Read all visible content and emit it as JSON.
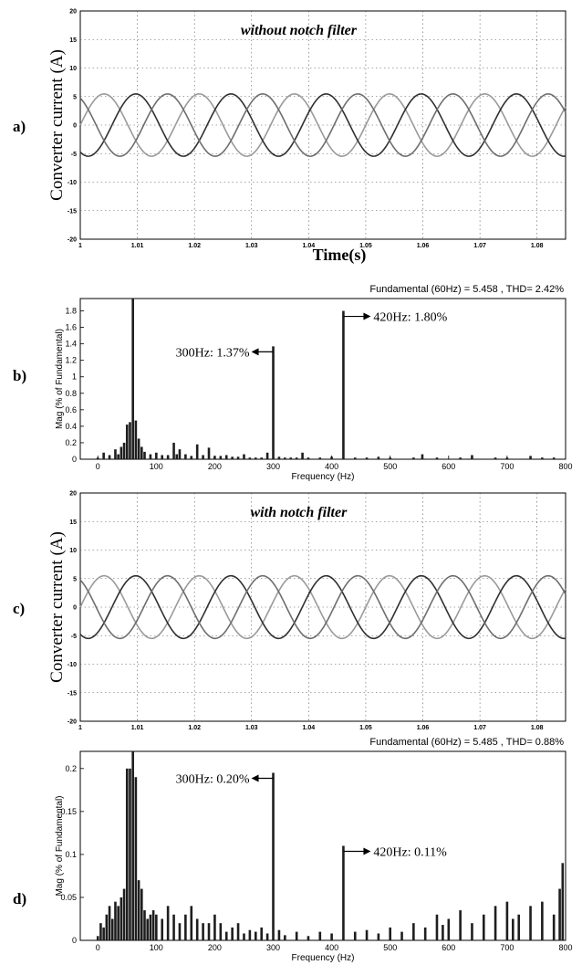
{
  "chart_data": [
    {
      "type": "line",
      "panel_label": "a)",
      "title": "without notch filter",
      "xlabel": "Time(s)",
      "ylabel": "Converter current (A)",
      "xlim": [
        1,
        1.085
      ],
      "ylim": [
        -20,
        20
      ],
      "x_ticks": [
        "1",
        "1.01",
        "1.02",
        "1.03",
        "1.04",
        "1.05",
        "1.06",
        "1.07",
        "1.08"
      ],
      "y_ticks": [
        "20",
        "15",
        "10",
        "5",
        "0",
        "-5",
        "-10",
        "-15",
        "-20"
      ],
      "grid": true,
      "frequency_hz": 60,
      "series": [
        {
          "amplitude": 5.46,
          "phase_deg": 0,
          "color": "#9a9a9a"
        },
        {
          "amplitude": 5.46,
          "phase_deg": -120,
          "color": "#303030"
        },
        {
          "amplitude": 5.46,
          "phase_deg": 120,
          "color": "#6e6e6e"
        }
      ]
    },
    {
      "type": "bar",
      "panel_label": "b)",
      "subtitle": "Fundamental (60Hz) = 5.458 , THD= 2.42%",
      "xlabel": "Frequency (Hz)",
      "ylabel": "Mag (% of Fundamental)",
      "xlim": [
        -30,
        800
      ],
      "ylim": [
        0,
        1.95
      ],
      "x_ticks": [
        "0",
        "100",
        "200",
        "300",
        "400",
        "500",
        "600",
        "700",
        "800"
      ],
      "y_ticks": [
        "0",
        "0.2",
        "0.4",
        "0.6",
        "0.8",
        "1",
        "1.2",
        "1.4",
        "1.6",
        "1.8"
      ],
      "annotations": [
        {
          "text": "300Hz: 1.37%",
          "x": 300,
          "y": 1.37
        },
        {
          "text": "420Hz: 1.80%",
          "x": 420,
          "y": 1.8
        }
      ],
      "x": [
        0,
        10,
        20,
        30,
        35,
        40,
        45,
        50,
        55,
        60,
        65,
        70,
        75,
        80,
        90,
        100,
        110,
        120,
        130,
        135,
        140,
        150,
        160,
        170,
        180,
        190,
        200,
        210,
        220,
        230,
        240,
        250,
        260,
        270,
        280,
        290,
        300,
        310,
        320,
        330,
        340,
        350,
        360,
        380,
        400,
        420,
        440,
        460,
        480,
        500,
        540,
        555,
        580,
        620,
        640,
        680,
        700,
        740,
        760,
        780
      ],
      "values": [
        0.02,
        0.08,
        0.05,
        0.12,
        0.06,
        0.15,
        0.2,
        0.42,
        0.45,
        1.95,
        0.47,
        0.25,
        0.15,
        0.09,
        0.06,
        0.08,
        0.05,
        0.05,
        0.2,
        0.06,
        0.12,
        0.06,
        0.04,
        0.18,
        0.05,
        0.14,
        0.04,
        0.04,
        0.05,
        0.03,
        0.03,
        0.06,
        0.02,
        0.02,
        0.02,
        0.08,
        1.37,
        0.03,
        0.02,
        0.02,
        0.02,
        0.08,
        0.02,
        0.02,
        0.03,
        1.8,
        0.02,
        0.02,
        0.03,
        0.02,
        0.02,
        0.06,
        0.02,
        0.02,
        0.05,
        0.02,
        0.02,
        0.04,
        0.02,
        0.02
      ]
    },
    {
      "type": "line",
      "panel_label": "c)",
      "title": "with notch filter",
      "xlabel": "",
      "ylabel": "Converter current (A)",
      "xlim": [
        1,
        1.085
      ],
      "ylim": [
        -20,
        20
      ],
      "x_ticks": [
        "1",
        "1.01",
        "1.02",
        "1.03",
        "1.04",
        "1.05",
        "1.06",
        "1.07",
        "1.08"
      ],
      "y_ticks": [
        "20",
        "15",
        "10",
        "5",
        "0",
        "-5",
        "-10",
        "-15",
        "-20"
      ],
      "grid": true,
      "frequency_hz": 60,
      "series": [
        {
          "amplitude": 5.49,
          "phase_deg": 0,
          "color": "#9a9a9a"
        },
        {
          "amplitude": 5.49,
          "phase_deg": -120,
          "color": "#303030"
        },
        {
          "amplitude": 5.49,
          "phase_deg": 120,
          "color": "#6e6e6e"
        }
      ]
    },
    {
      "type": "bar",
      "panel_label": "d)",
      "subtitle": "Fundamental (60Hz) = 5.485 , THD= 0.88%",
      "xlabel": "Frequency (Hz)",
      "ylabel": "Mag (% of Fundamental)",
      "xlim": [
        -30,
        800
      ],
      "ylim": [
        0,
        0.22
      ],
      "x_ticks": [
        "0",
        "100",
        "200",
        "300",
        "400",
        "500",
        "600",
        "700",
        "800"
      ],
      "y_ticks": [
        "0",
        "0.05",
        "0.1",
        "0.15",
        "0.2"
      ],
      "annotations": [
        {
          "text": "300Hz: 0.20%",
          "x": 300,
          "y": 0.195
        },
        {
          "text": "420Hz: 0.11%",
          "x": 420,
          "y": 0.11
        }
      ],
      "x": [
        0,
        5,
        10,
        15,
        20,
        25,
        30,
        35,
        40,
        45,
        50,
        55,
        60,
        65,
        70,
        75,
        80,
        85,
        90,
        95,
        100,
        110,
        120,
        130,
        140,
        150,
        160,
        170,
        180,
        190,
        200,
        210,
        220,
        230,
        240,
        250,
        260,
        270,
        280,
        290,
        300,
        310,
        320,
        340,
        360,
        380,
        400,
        420,
        440,
        460,
        480,
        500,
        520,
        540,
        560,
        580,
        590,
        600,
        620,
        640,
        660,
        680,
        700,
        710,
        720,
        740,
        760,
        780,
        790,
        795
      ],
      "values": [
        0.005,
        0.02,
        0.015,
        0.03,
        0.04,
        0.025,
        0.045,
        0.04,
        0.05,
        0.06,
        0.2,
        0.2,
        0.225,
        0.19,
        0.07,
        0.06,
        0.035,
        0.025,
        0.03,
        0.035,
        0.03,
        0.025,
        0.04,
        0.03,
        0.02,
        0.03,
        0.04,
        0.025,
        0.02,
        0.02,
        0.03,
        0.02,
        0.01,
        0.015,
        0.02,
        0.008,
        0.012,
        0.01,
        0.015,
        0.008,
        0.195,
        0.012,
        0.006,
        0.01,
        0.005,
        0.01,
        0.008,
        0.11,
        0.01,
        0.012,
        0.008,
        0.015,
        0.01,
        0.02,
        0.015,
        0.03,
        0.018,
        0.025,
        0.035,
        0.02,
        0.03,
        0.04,
        0.045,
        0.025,
        0.03,
        0.04,
        0.045,
        0.03,
        0.06,
        0.09
      ]
    }
  ]
}
